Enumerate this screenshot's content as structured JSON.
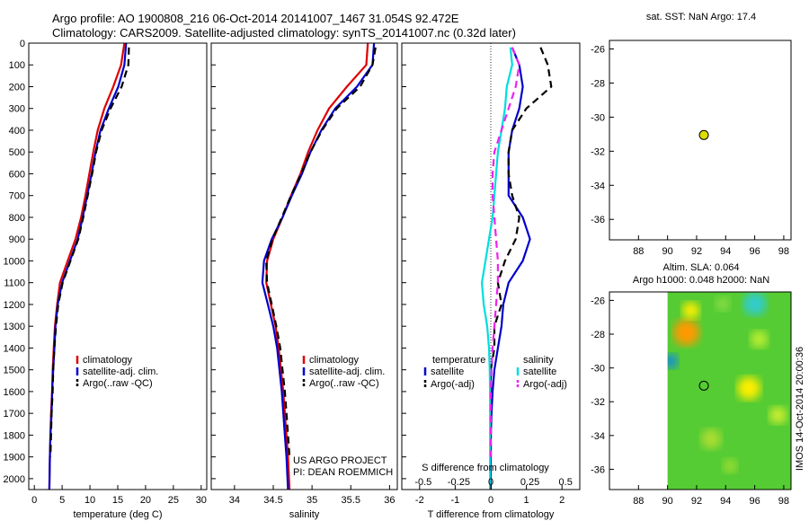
{
  "header": {
    "line1": "Argo profile: AO 1900808_216 06-Oct-2014 20141007_1467 31.054S 92.472E",
    "line2": "Climatology: CARS2009. Satellite-adjusted climatology: synTS_20141007.nc (0.32d later)"
  },
  "chart_data": [
    {
      "type": "line",
      "xlabel": "temperature (deg C)",
      "xlim": [
        -1,
        31
      ],
      "ylim": [
        0,
        2050
      ],
      "y_reversed": true,
      "x_ticks": [
        0,
        5,
        10,
        15,
        20,
        25,
        30
      ],
      "y_ticks": [
        0,
        100,
        200,
        300,
        400,
        500,
        600,
        700,
        800,
        900,
        1000,
        1100,
        1200,
        1300,
        1400,
        1500,
        1600,
        1700,
        1800,
        1900,
        2000
      ],
      "legend": [
        "climatology",
        "satellite-adj. clim.",
        "Argo(..raw -QC)"
      ],
      "series": [
        {
          "name": "climatology",
          "color": "#dd0000",
          "x": [
            16.2,
            15.6,
            14.2,
            12.6,
            11.4,
            10.6,
            9.9,
            9.2,
            8.4,
            7.4,
            6.0,
            4.6,
            4.1,
            3.7,
            3.5,
            3.3,
            3.2,
            3.0,
            2.9,
            2.8,
            2.7
          ],
          "y": [
            0,
            100,
            200,
            300,
            400,
            500,
            600,
            700,
            800,
            900,
            1000,
            1100,
            1200,
            1300,
            1400,
            1500,
            1600,
            1700,
            1800,
            1900,
            2050
          ]
        },
        {
          "name": "satellite-adj. clim.",
          "color": "#0000cc",
          "x": [
            16.5,
            16.2,
            15.1,
            13.4,
            11.9,
            11.0,
            10.3,
            9.5,
            8.7,
            7.8,
            6.4,
            5.0,
            4.2,
            3.8,
            3.6,
            3.4,
            3.2,
            3.1,
            2.9,
            2.8,
            2.7
          ],
          "y": [
            0,
            100,
            200,
            300,
            400,
            500,
            600,
            700,
            800,
            900,
            1000,
            1100,
            1200,
            1300,
            1400,
            1500,
            1600,
            1700,
            1800,
            1900,
            2050
          ]
        },
        {
          "name": "Argo(..raw -QC)",
          "color": "#000000",
          "dashed": true,
          "x": [
            17.0,
            16.9,
            15.7,
            13.7,
            12.1,
            11.1,
            10.4,
            9.6,
            8.8,
            7.9,
            6.5,
            5.1,
            4.3,
            3.9,
            3.6,
            3.4,
            3.3,
            3.1,
            3.0,
            2.9
          ],
          "y": [
            20,
            100,
            200,
            300,
            400,
            500,
            600,
            700,
            800,
            900,
            1000,
            1100,
            1200,
            1300,
            1400,
            1500,
            1600,
            1700,
            1800,
            1900
          ]
        }
      ]
    },
    {
      "type": "line",
      "xlabel": "salinity",
      "xlim": [
        33.7,
        36.1
      ],
      "ylim": [
        0,
        2050
      ],
      "y_reversed": true,
      "x_ticks": [
        34,
        34.5,
        35,
        35.5,
        36
      ],
      "legend": [
        "climatology",
        "satellite-adj. clim.",
        "Argo(..raw -QC)"
      ],
      "series": [
        {
          "name": "climatology",
          "color": "#dd0000",
          "x": [
            35.72,
            35.7,
            35.45,
            35.22,
            35.07,
            34.95,
            34.85,
            34.73,
            34.62,
            34.5,
            34.42,
            34.41,
            34.47,
            34.53,
            34.57,
            34.6,
            34.63,
            34.65,
            34.67,
            34.69,
            34.71
          ],
          "y": [
            0,
            100,
            200,
            300,
            400,
            500,
            600,
            700,
            800,
            900,
            1000,
            1100,
            1200,
            1300,
            1400,
            1500,
            1600,
            1700,
            1800,
            1900,
            2050
          ]
        },
        {
          "name": "satellite-adj. clim.",
          "color": "#0000cc",
          "x": [
            35.8,
            35.78,
            35.58,
            35.3,
            35.12,
            34.98,
            34.87,
            34.74,
            34.62,
            34.48,
            34.38,
            34.36,
            34.43,
            34.5,
            34.55,
            34.58,
            34.61,
            34.63,
            34.65,
            34.67,
            34.69
          ],
          "y": [
            0,
            100,
            200,
            300,
            400,
            500,
            600,
            700,
            800,
            900,
            1000,
            1100,
            1200,
            1300,
            1400,
            1500,
            1600,
            1700,
            1800,
            1900,
            2050
          ]
        },
        {
          "name": "Argo(..raw -QC)",
          "color": "#000000",
          "dashed": true,
          "x": [
            35.82,
            35.78,
            35.62,
            35.32,
            35.13,
            34.98,
            34.86,
            34.73,
            34.61,
            34.49,
            34.41,
            34.42,
            34.48,
            34.54,
            34.59,
            34.62,
            34.65,
            34.67,
            34.69,
            34.71
          ],
          "y": [
            20,
            100,
            200,
            300,
            400,
            500,
            600,
            700,
            800,
            900,
            1000,
            1100,
            1200,
            1300,
            1400,
            1500,
            1600,
            1700,
            1800,
            1900
          ]
        }
      ]
    },
    {
      "type": "line",
      "xlabel": "T difference from climatology",
      "top_xlabel": "S difference from climatology",
      "xlim": [
        -2.5,
        2.5
      ],
      "ylim": [
        0,
        2050
      ],
      "y_reversed": true,
      "x_ticks": [
        -2,
        -1,
        0,
        1,
        2
      ],
      "top_x_ticks": [
        "-0.5",
        "-0.25",
        "0",
        "0.25",
        "0.5"
      ],
      "legend_titles": [
        "temperature",
        "salinity"
      ],
      "legend": [
        "satellite",
        "Argo(-adj)",
        "satellite",
        "Argo(-adj)"
      ],
      "series": [
        {
          "name": "satellite",
          "group": "temperature",
          "color": "#0000cc",
          "x": [
            0.6,
            0.8,
            0.9,
            0.8,
            0.6,
            0.5,
            0.5,
            0.5,
            0.9,
            1.1,
            0.9,
            0.5,
            0.35,
            0.3,
            0.2,
            0.1,
            0.05,
            0.02,
            0.0,
            0.0
          ],
          "y": [
            20,
            100,
            200,
            300,
            400,
            500,
            600,
            700,
            800,
            900,
            1000,
            1100,
            1200,
            1300,
            1400,
            1500,
            1600,
            1700,
            1800,
            2050
          ]
        },
        {
          "name": "Argo(-adj)",
          "group": "temperature",
          "color": "#000000",
          "dashed": true,
          "x": [
            1.4,
            1.6,
            1.7,
            1.0,
            0.6,
            0.5,
            0.5,
            0.6,
            0.8,
            0.7,
            0.4,
            0.2,
            0.3,
            0.1,
            0.1,
            0.0,
            0.0,
            0.0,
            0.0,
            0.0
          ],
          "y": [
            20,
            100,
            200,
            300,
            400,
            500,
            600,
            700,
            800,
            900,
            1000,
            1100,
            1200,
            1300,
            1400,
            1500,
            1600,
            1700,
            1800,
            1900
          ]
        },
        {
          "name": "satellite",
          "group": "salinity",
          "color": "#00dddd",
          "x": [
            0.55,
            0.6,
            0.45,
            0.4,
            0.3,
            0.2,
            0.15,
            0.1,
            0.05,
            -0.05,
            -0.15,
            -0.25,
            -0.2,
            -0.1,
            -0.05,
            -0.03,
            -0.02,
            -0.02,
            -0.02,
            -0.02
          ],
          "y": [
            20,
            100,
            200,
            300,
            400,
            500,
            600,
            700,
            800,
            900,
            1000,
            1100,
            1200,
            1300,
            1400,
            1500,
            1600,
            1700,
            1800,
            2050
          ]
        },
        {
          "name": "Argo(-adj)",
          "group": "salinity",
          "color": "#ee22ee",
          "dashed": true,
          "x": [
            0.6,
            0.8,
            0.7,
            0.5,
            0.3,
            0.1,
            0.05,
            0.05,
            0.1,
            0.15,
            0.2,
            0.2,
            0.15,
            0.1,
            0.05,
            0.02,
            0.0,
            0.0,
            0.0,
            0.0
          ],
          "y": [
            20,
            100,
            200,
            300,
            400,
            500,
            600,
            700,
            800,
            900,
            1000,
            1100,
            1200,
            1300,
            1400,
            1500,
            1600,
            1700,
            1800,
            1900
          ]
        }
      ]
    },
    {
      "type": "scatter",
      "title": "sat. SST: NaN Argo: 17.4",
      "xlim": [
        86,
        98.5
      ],
      "ylim": [
        -37.2,
        -25.5
      ],
      "x_ticks": [
        88,
        90,
        92,
        94,
        96,
        98
      ],
      "y_ticks": [
        -26,
        -28,
        -30,
        -32,
        -34,
        -36
      ],
      "points": [
        {
          "x": 92.5,
          "y": -31.05,
          "color": "#dddd00"
        }
      ]
    },
    {
      "type": "heatmap",
      "title_line1": "Altim. SLA: 0.064",
      "title_line2": "Argo h1000: 0.048 h2000: NaN",
      "xlim": [
        86,
        98.5
      ],
      "ylim": [
        -37.2,
        -25.5
      ],
      "x_ticks": [
        88,
        90,
        92,
        94,
        96,
        98
      ],
      "y_ticks": [
        -26,
        -28,
        -30,
        -32,
        -34,
        -36
      ],
      "data_extent_x": [
        90,
        98.5
      ],
      "base_color": "#55cc33",
      "blobs": [
        {
          "x": 91.3,
          "y": -27.9,
          "r": 0.9,
          "color": "#ff9900"
        },
        {
          "x": 91.6,
          "y": -26.6,
          "r": 0.6,
          "color": "#ffee00"
        },
        {
          "x": 90.2,
          "y": -29.6,
          "r": 0.5,
          "color": "#1188dd"
        },
        {
          "x": 95.6,
          "y": -31.2,
          "r": 0.8,
          "color": "#ffee00"
        },
        {
          "x": 96.0,
          "y": -26.2,
          "r": 0.8,
          "color": "#33cccc"
        },
        {
          "x": 93.8,
          "y": -26.2,
          "r": 0.5,
          "color": "#88dd44"
        },
        {
          "x": 97.6,
          "y": -32.8,
          "r": 0.6,
          "color": "#ccee33"
        },
        {
          "x": 93.0,
          "y": -34.2,
          "r": 0.7,
          "color": "#aadd33"
        },
        {
          "x": 96.3,
          "y": -28.3,
          "r": 0.6,
          "color": "#bbee33"
        },
        {
          "x": 94.3,
          "y": -35.8,
          "r": 0.5,
          "color": "#99dd33"
        }
      ],
      "points": [
        {
          "x": 92.5,
          "y": -31.05,
          "color": "none"
        }
      ]
    }
  ],
  "annotations": {
    "project_line1": "US ARGO PROJECT",
    "project_line2": "PI: DEAN ROEMMICH",
    "stamp": "IMOS 14-Oct-2014 20:00:36"
  }
}
